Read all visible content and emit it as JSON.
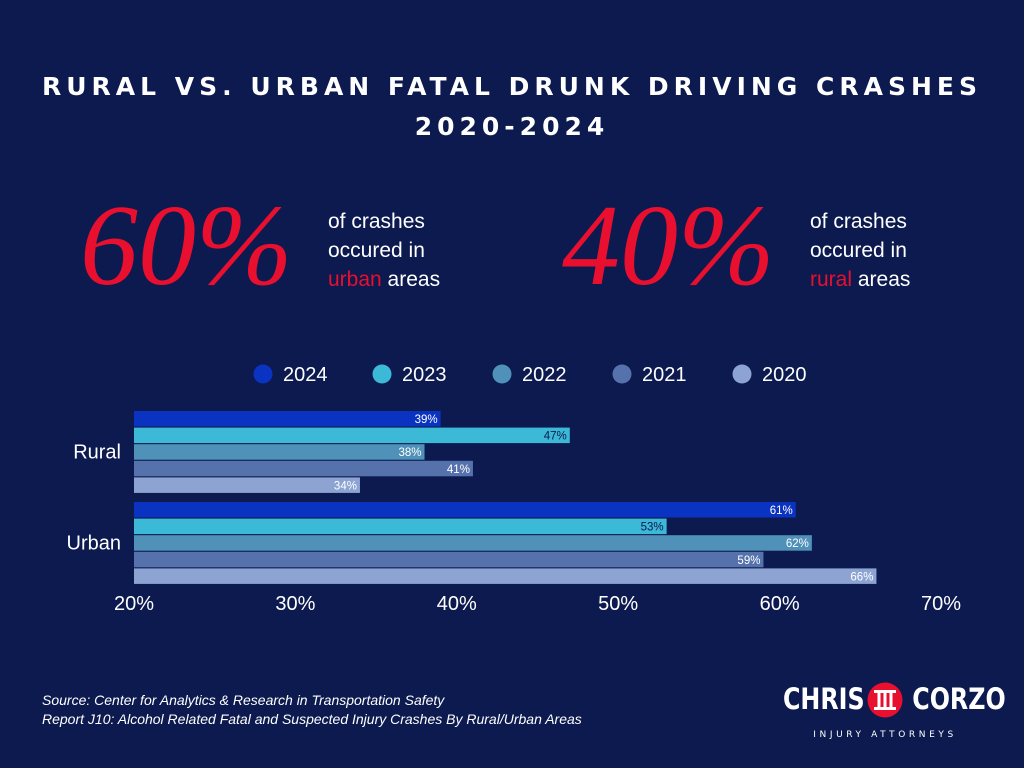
{
  "header": {
    "title_line1": "RURAL VS. URBAN FATAL DRUNK DRIVING CRASHES",
    "title_line2": "2020-2024"
  },
  "stats": {
    "urban": {
      "value": "60%",
      "line1": "of crashes",
      "line2": "occured in",
      "highlight": "urban",
      "suffix": " areas"
    },
    "rural": {
      "value": "40%",
      "line1": "of crashes",
      "line2": "occured in",
      "highlight": "rural",
      "suffix": " areas"
    }
  },
  "source": {
    "line1": "Source: Center for Analytics & Research in Transportation Safety",
    "line2": "Report J10: Alcohol Related Fatal and Suspected Injury Crashes By Rural/Urban Areas"
  },
  "logo": {
    "left_word": "CHRIS",
    "right_word": "CORZO",
    "tagline": "INJURY ATTORNEYS"
  },
  "colors": {
    "background": "#0c1a4f",
    "accent_red": "#e8102e",
    "series": [
      "#0b33c2",
      "#3db9d8",
      "#4f91b8",
      "#5672ad",
      "#8da4d3"
    ]
  },
  "chart_data": {
    "type": "bar",
    "orientation": "horizontal",
    "categories": [
      "Rural",
      "Urban"
    ],
    "series": [
      {
        "name": "2024",
        "values": [
          39,
          61
        ],
        "labels": [
          "39%",
          "61%"
        ],
        "color": "#0b33c2"
      },
      {
        "name": "2023",
        "values": [
          47,
          53
        ],
        "labels": [
          "47%",
          "53%"
        ],
        "color": "#3db9d8"
      },
      {
        "name": "2022",
        "values": [
          38,
          62
        ],
        "labels": [
          "38%",
          "62%"
        ],
        "color": "#4f91b8"
      },
      {
        "name": "2021",
        "values": [
          41,
          59
        ],
        "labels": [
          "41%",
          "59%"
        ],
        "color": "#5672ad"
      },
      {
        "name": "2020",
        "values": [
          34,
          66
        ],
        "labels": [
          "34%",
          "66%"
        ],
        "color": "#8da4d3"
      }
    ],
    "xlim": [
      20,
      70
    ],
    "xticks": [
      "20%",
      "30%",
      "40%",
      "50%",
      "60%",
      "70%"
    ],
    "xtick_values": [
      20,
      30,
      40,
      50,
      60,
      70
    ],
    "legend_placement": "top",
    "grid": false
  }
}
